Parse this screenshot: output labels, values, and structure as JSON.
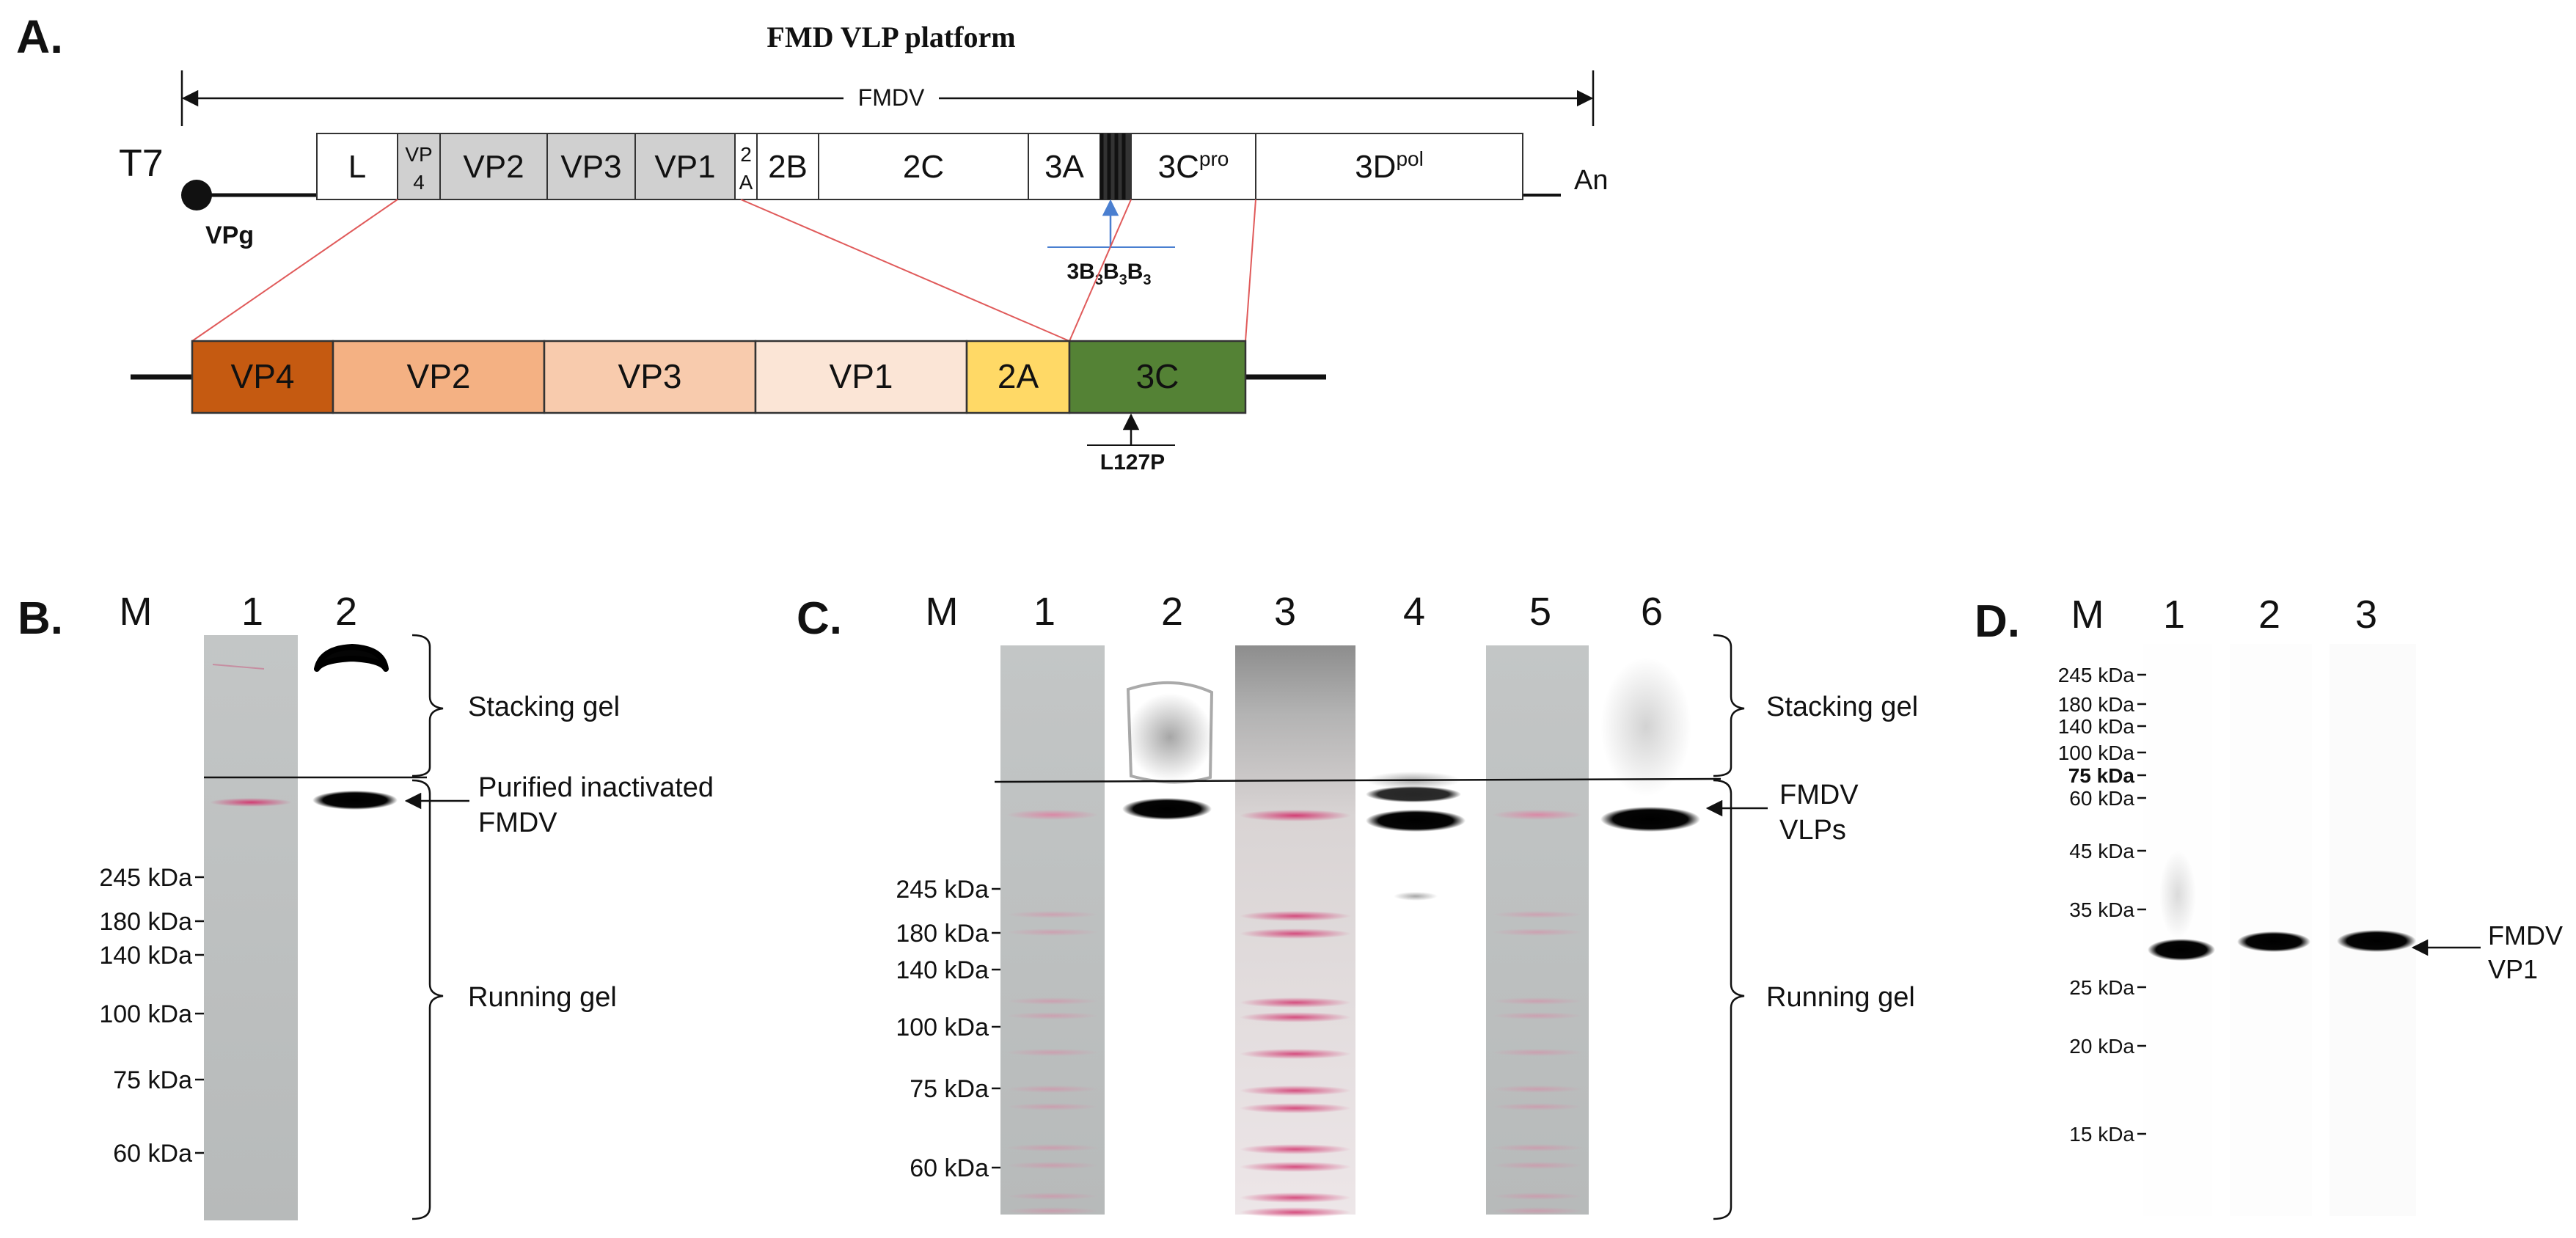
{
  "panelA": {
    "label": "A.",
    "title": "FMD VLP platform",
    "genome_label": "FMDV",
    "promoter": "T7",
    "vpg": "VPg",
    "polyA": "An",
    "genome_segments": [
      {
        "label": "L",
        "sub": "",
        "sup": "",
        "color": "#ffffff"
      },
      {
        "label": "VP",
        "sub": "4",
        "sup": "",
        "color": "#d0d0d0"
      },
      {
        "label": "VP2",
        "sub": "",
        "sup": "",
        "color": "#d0d0d0"
      },
      {
        "label": "VP3",
        "sub": "",
        "sup": "",
        "color": "#d0d0d0"
      },
      {
        "label": "VP1",
        "sub": "",
        "sup": "",
        "color": "#d0d0d0"
      },
      {
        "label": "2",
        "sub": "A",
        "sup": "",
        "color": "#ffffff"
      },
      {
        "label": "2B",
        "sub": "",
        "sup": "",
        "color": "#ffffff"
      },
      {
        "label": "2C",
        "sub": "",
        "sup": "",
        "color": "#ffffff"
      },
      {
        "label": "3A",
        "sub": "",
        "sup": "",
        "color": "#ffffff"
      },
      {
        "label": "",
        "sub": "",
        "sup": "",
        "color": "#333333"
      },
      {
        "label": "3C",
        "sub": "",
        "sup": "pro",
        "color": "#ffffff"
      },
      {
        "label": "3D",
        "sub": "",
        "sup": "pol",
        "color": "#ffffff"
      }
    ],
    "b3_label": {
      "p1": "3B",
      "s1": "3",
      "p2": "B",
      "s2": "3",
      "p3": "B",
      "s3": "3"
    },
    "construct_segments": [
      {
        "label": "VP4",
        "color": "#c55a11"
      },
      {
        "label": "VP2",
        "color": "#f4b183"
      },
      {
        "label": "VP3",
        "color": "#f8cbad"
      },
      {
        "label": "VP1",
        "color": "#fbe5d6"
      },
      {
        "label": "2A",
        "color": "#ffd966"
      },
      {
        "label": "3C",
        "color": "#548235"
      }
    ],
    "mutation": "L127P"
  },
  "panelB": {
    "label": "B.",
    "lanes": [
      "M",
      "1",
      "2"
    ],
    "markers": [
      "245 kDa",
      "180 kDa",
      "140 kDa",
      "100 kDa",
      "75 kDa",
      "60 kDa"
    ],
    "annotations": {
      "stacking": "Stacking gel",
      "band_line1": "Purified inactivated",
      "band_line2": "FMDV",
      "running": "Running gel"
    }
  },
  "panelC": {
    "label": "C.",
    "lanes": [
      "M",
      "1",
      "2",
      "3",
      "4",
      "5",
      "6"
    ],
    "markers": [
      "245 kDa",
      "180 kDa",
      "140 kDa",
      "100 kDa",
      "75 kDa",
      "60 kDa"
    ],
    "annotations": {
      "stacking": "Stacking gel",
      "band_line1": "FMDV",
      "band_line2": "VLPs",
      "running": "Running gel"
    }
  },
  "panelD": {
    "label": "D.",
    "lanes": [
      "M",
      "1",
      "2",
      "3"
    ],
    "markers": [
      "245 kDa",
      "180 kDa",
      "140 kDa",
      "100 kDa",
      "75 kDa",
      "60 kDa",
      "45 kDa",
      "35 kDa",
      "25 kDa",
      "20 kDa",
      "15 kDa"
    ],
    "annotations": {
      "band_line1": "FMDV",
      "band_line2": "VP1"
    }
  }
}
